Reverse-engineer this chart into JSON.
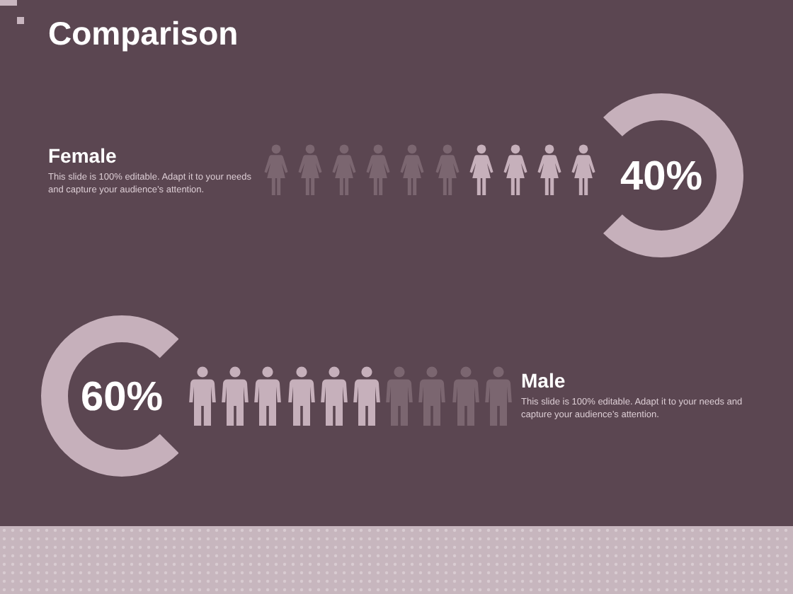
{
  "chart_data": {
    "type": "other",
    "title": "Comparison",
    "categories": [
      "Female",
      "Male"
    ],
    "values": [
      40,
      60
    ],
    "value_labels": [
      "40%",
      "60%"
    ],
    "color": "#c6b0bb",
    "annotations": [
      "This slide is 100% editable. Adapt it to your needs and capture your audience’s attention.",
      "This slide is 100% editable. Adapt it to your needs and capture your audience’s attention."
    ]
  }
}
